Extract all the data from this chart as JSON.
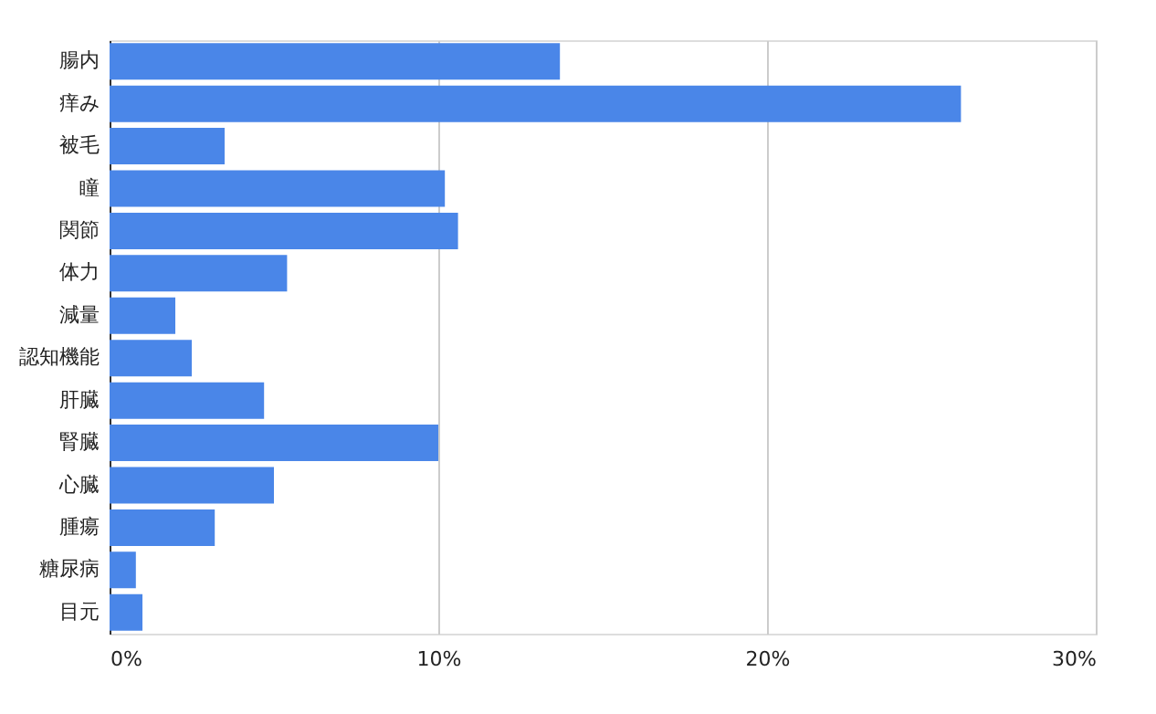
{
  "chart_data": {
    "type": "bar",
    "orientation": "horizontal",
    "categories": [
      "腸内",
      "痒み",
      "被毛",
      "瞳",
      "関節",
      "体力",
      "減量",
      "認知機能",
      "肝臓",
      "腎臓",
      "心臓",
      "腫瘍",
      "糖尿病",
      "目元"
    ],
    "values": [
      13.7,
      25.9,
      3.5,
      10.2,
      10.6,
      5.4,
      2.0,
      2.5,
      4.7,
      10.0,
      5.0,
      3.2,
      0.8,
      1.0
    ],
    "color": "#4a86e8",
    "xlim": [
      0,
      30
    ],
    "xticks": [
      {
        "value": 0,
        "label": "0%"
      },
      {
        "value": 10,
        "label": "10%"
      },
      {
        "value": 20,
        "label": "20%"
      },
      {
        "value": 30,
        "label": "30%"
      }
    ],
    "grid": "x"
  }
}
